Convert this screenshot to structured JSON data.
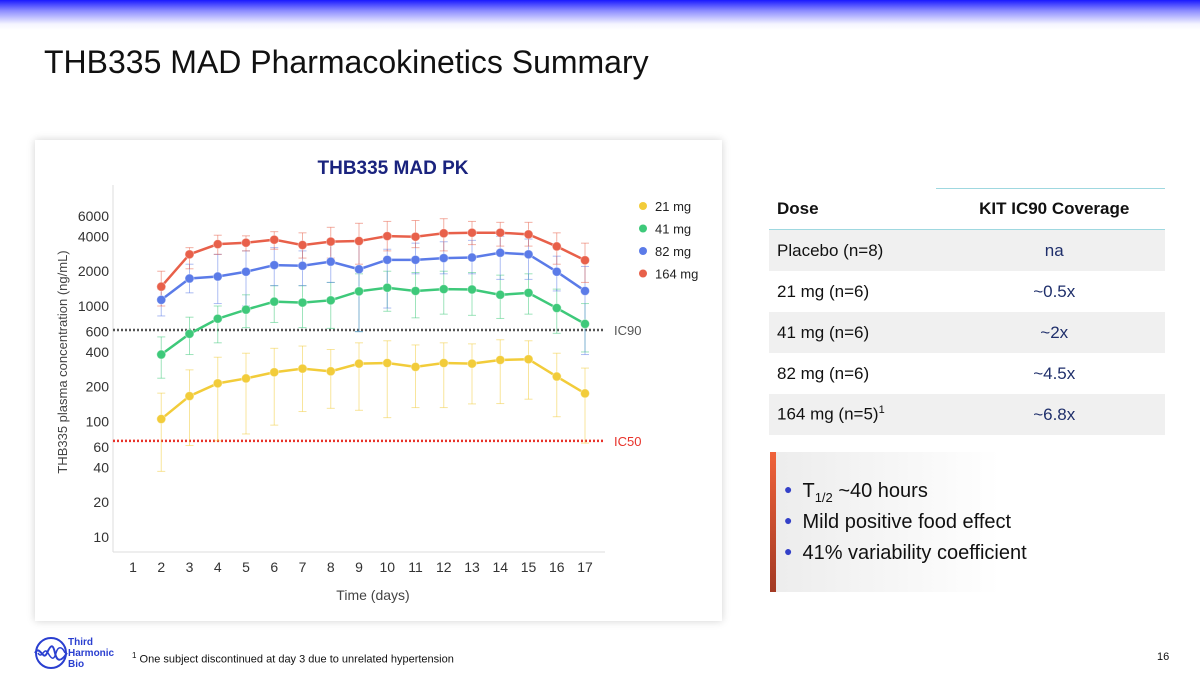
{
  "page": {
    "title": "THB335 MAD Pharmacokinetics Summary",
    "page_number": "16",
    "footnote_mark": "1",
    "footnote": "One subject discontinued at day 3 due to unrelated hypertension",
    "logo_text": [
      "Third",
      "Harmonic",
      "Bio"
    ]
  },
  "table": {
    "headers": [
      "Dose",
      "KIT IC90 Coverage"
    ],
    "rows": [
      {
        "dose": "Placebo (n=8)",
        "coverage": "na"
      },
      {
        "dose": "21 mg (n=6)",
        "coverage": "~0.5x"
      },
      {
        "dose": "41 mg (n=6)",
        "coverage": "~2x"
      },
      {
        "dose": "82 mg (n=6)",
        "coverage": "~4.5x"
      },
      {
        "dose": "164 mg (n=5)",
        "sup": "1",
        "coverage": "~6.8x"
      }
    ]
  },
  "bullets": [
    {
      "pre": "T",
      "sub": "1/2",
      "post": " ~40 hours"
    },
    {
      "pre": "Mild positive food effect"
    },
    {
      "pre": "41% variability coefficient"
    }
  ],
  "chart_data": {
    "type": "line",
    "title": "THB335 MAD PK",
    "xlabel": "Time (days)",
    "ylabel": "THB335 plasma concentration (ng/mL)",
    "y_scale": "log",
    "ylim": [
      8,
      7000
    ],
    "xlim": [
      0.3,
      17.7
    ],
    "legend_placement": "top-right",
    "grid": false,
    "x_ticks": [
      1,
      2,
      3,
      4,
      5,
      6,
      7,
      8,
      9,
      10,
      11,
      12,
      13,
      14,
      15,
      16,
      17
    ],
    "y_ticks": [
      10,
      20,
      40,
      60,
      100,
      200,
      400,
      600,
      1000,
      2000,
      4000,
      6000
    ],
    "x": [
      2,
      3,
      4,
      5,
      6,
      7,
      8,
      9,
      10,
      11,
      12,
      13,
      14,
      15,
      16,
      17
    ],
    "reference_lines": [
      {
        "label": "IC90",
        "value": 620,
        "color": "#555555"
      },
      {
        "label": "IC50",
        "value": 68,
        "color": "#e8322a"
      }
    ],
    "series": [
      {
        "name": "21 mg",
        "color": "#f2cc3a",
        "values": [
          105,
          166,
          214,
          236,
          267,
          287,
          272,
          317,
          321,
          297,
          321,
          317,
          341,
          346,
          245,
          175
        ],
        "err_low": [
          37,
          62,
          68,
          78,
          93,
          122,
          130,
          125,
          108,
          132,
          132,
          142,
          143,
          156,
          110,
          65
        ],
        "err_high": [
          176,
          280,
          360,
          390,
          430,
          450,
          420,
          480,
          500,
          460,
          480,
          470,
          510,
          500,
          390,
          290
        ]
      },
      {
        "name": "41 mg",
        "color": "#3ec97a",
        "values": [
          380,
          574,
          776,
          930,
          1090,
          1070,
          1120,
          1340,
          1440,
          1350,
          1400,
          1390,
          1250,
          1300,
          960,
          700
        ],
        "err_low": [
          237,
          380,
          480,
          650,
          720,
          650,
          640,
          600,
          900,
          790,
          850,
          830,
          780,
          850,
          580,
          400
        ],
        "err_high": [
          540,
          800,
          1000,
          1250,
          1500,
          1500,
          1600,
          1900,
          2000,
          1950,
          2000,
          1950,
          1850,
          1900,
          1400,
          1050
        ]
      },
      {
        "name": "82 mg",
        "color": "#5b7be8",
        "values": [
          1130,
          1730,
          1800,
          1980,
          2260,
          2230,
          2420,
          2080,
          2510,
          2510,
          2600,
          2630,
          2890,
          2800,
          1980,
          1350
        ],
        "err_low": [
          820,
          1300,
          1050,
          1000,
          1500,
          1500,
          1600,
          600,
          960,
          1900,
          1900,
          1900,
          1700,
          1700,
          1350,
          380
        ],
        "err_high": [
          1400,
          2300,
          2800,
          3000,
          3200,
          3000,
          3400,
          3500,
          3100,
          3500,
          3600,
          3700,
          4000,
          3800,
          2700,
          2200
        ]
      },
      {
        "name": "164 mg",
        "color": "#e8604a",
        "values": [
          1470,
          2800,
          3430,
          3530,
          3750,
          3370,
          3610,
          3650,
          4030,
          3980,
          4260,
          4310,
          4310,
          4170,
          3280,
          2490
        ],
        "err_low": [
          1000,
          2100,
          2800,
          3000,
          3100,
          2600,
          2600,
          2300,
          3000,
          3200,
          3000,
          3400,
          3300,
          3300,
          2300,
          1600
        ],
        "err_high": [
          2000,
          3200,
          4100,
          4050,
          4400,
          4300,
          4800,
          5200,
          5400,
          5500,
          5700,
          5400,
          5300,
          5300,
          4300,
          3500
        ]
      }
    ]
  }
}
